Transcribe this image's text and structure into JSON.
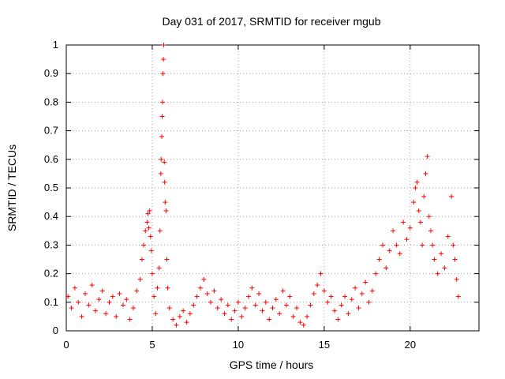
{
  "chart_data": {
    "type": "scatter",
    "title": "Day 031 of 2017, SRMTID for receiver mgub",
    "xlabel": "GPS time / hours",
    "ylabel": "SRMTID / TECUs",
    "xlim": [
      0,
      24
    ],
    "ylim": [
      0,
      1
    ],
    "xticks": [
      0,
      5,
      10,
      15,
      20
    ],
    "xtick_labels": [
      "0",
      "5",
      "10",
      "15",
      "20"
    ],
    "yticks": [
      0,
      0.1,
      0.2,
      0.3,
      0.4,
      0.5,
      0.6,
      0.7,
      0.8,
      0.9,
      1
    ],
    "ytick_labels": [
      "0",
      "0.1",
      "0.2",
      "0.3",
      "0.4",
      "0.5",
      "0.6",
      "0.7",
      "0.8",
      "0.9",
      "1"
    ],
    "grid": true,
    "marker": "+",
    "series": [
      {
        "name": "SRMTID",
        "color": "#ff0000",
        "points": [
          [
            0.1,
            0.12
          ],
          [
            0.3,
            0.08
          ],
          [
            0.5,
            0.15
          ],
          [
            0.7,
            0.1
          ],
          [
            0.9,
            0.05
          ],
          [
            1.1,
            0.13
          ],
          [
            1.3,
            0.09
          ],
          [
            1.5,
            0.16
          ],
          [
            1.7,
            0.07
          ],
          [
            1.9,
            0.11
          ],
          [
            2.1,
            0.14
          ],
          [
            2.3,
            0.06
          ],
          [
            2.5,
            0.1
          ],
          [
            2.7,
            0.12
          ],
          [
            2.9,
            0.05
          ],
          [
            3.1,
            0.13
          ],
          [
            3.3,
            0.09
          ],
          [
            3.5,
            0.11
          ],
          [
            3.7,
            0.04
          ],
          [
            3.9,
            0.08
          ],
          [
            4.1,
            0.14
          ],
          [
            4.3,
            0.18
          ],
          [
            4.4,
            0.25
          ],
          [
            4.5,
            0.3
          ],
          [
            4.6,
            0.35
          ],
          [
            4.7,
            0.38
          ],
          [
            4.75,
            0.41
          ],
          [
            4.8,
            0.36
          ],
          [
            4.85,
            0.42
          ],
          [
            4.9,
            0.33
          ],
          [
            4.95,
            0.28
          ],
          [
            5.0,
            0.2
          ],
          [
            5.1,
            0.12
          ],
          [
            5.2,
            0.06
          ],
          [
            5.3,
            0.15
          ],
          [
            5.4,
            0.22
          ],
          [
            5.45,
            0.35
          ],
          [
            5.5,
            0.55
          ],
          [
            5.52,
            0.6
          ],
          [
            5.55,
            0.68
          ],
          [
            5.58,
            0.75
          ],
          [
            5.6,
            0.8
          ],
          [
            5.62,
            0.9
          ],
          [
            5.65,
            0.95
          ],
          [
            5.67,
            1.0
          ],
          [
            5.7,
            0.59
          ],
          [
            5.72,
            0.52
          ],
          [
            5.75,
            0.45
          ],
          [
            5.8,
            0.42
          ],
          [
            5.85,
            0.25
          ],
          [
            5.9,
            0.15
          ],
          [
            6.0,
            0.08
          ],
          [
            6.2,
            0.04
          ],
          [
            6.4,
            0.02
          ],
          [
            6.6,
            0.05
          ],
          [
            6.8,
            0.07
          ],
          [
            7.0,
            0.03
          ],
          [
            7.2,
            0.06
          ],
          [
            7.4,
            0.09
          ],
          [
            7.6,
            0.12
          ],
          [
            7.8,
            0.15
          ],
          [
            8.0,
            0.18
          ],
          [
            8.2,
            0.13
          ],
          [
            8.4,
            0.1
          ],
          [
            8.6,
            0.14
          ],
          [
            8.8,
            0.08
          ],
          [
            9.0,
            0.11
          ],
          [
            9.2,
            0.06
          ],
          [
            9.4,
            0.09
          ],
          [
            9.6,
            0.04
          ],
          [
            9.8,
            0.07
          ],
          [
            10.0,
            0.1
          ],
          [
            10.2,
            0.05
          ],
          [
            10.4,
            0.08
          ],
          [
            10.6,
            0.12
          ],
          [
            10.8,
            0.15
          ],
          [
            11.0,
            0.09
          ],
          [
            11.2,
            0.13
          ],
          [
            11.4,
            0.07
          ],
          [
            11.6,
            0.1
          ],
          [
            11.8,
            0.04
          ],
          [
            12.0,
            0.08
          ],
          [
            12.2,
            0.11
          ],
          [
            12.4,
            0.06
          ],
          [
            12.6,
            0.14
          ],
          [
            12.8,
            0.09
          ],
          [
            13.0,
            0.12
          ],
          [
            13.2,
            0.05
          ],
          [
            13.4,
            0.08
          ],
          [
            13.6,
            0.03
          ],
          [
            13.8,
            0.02
          ],
          [
            14.0,
            0.05
          ],
          [
            14.2,
            0.09
          ],
          [
            14.4,
            0.13
          ],
          [
            14.6,
            0.16
          ],
          [
            14.8,
            0.2
          ],
          [
            15.0,
            0.14
          ],
          [
            15.2,
            0.1
          ],
          [
            15.4,
            0.12
          ],
          [
            15.6,
            0.07
          ],
          [
            15.8,
            0.04
          ],
          [
            16.0,
            0.09
          ],
          [
            16.2,
            0.12
          ],
          [
            16.4,
            0.06
          ],
          [
            16.6,
            0.11
          ],
          [
            16.8,
            0.15
          ],
          [
            17.0,
            0.08
          ],
          [
            17.2,
            0.13
          ],
          [
            17.4,
            0.17
          ],
          [
            17.6,
            0.1
          ],
          [
            17.8,
            0.14
          ],
          [
            18.0,
            0.2
          ],
          [
            18.2,
            0.25
          ],
          [
            18.4,
            0.3
          ],
          [
            18.6,
            0.22
          ],
          [
            18.8,
            0.28
          ],
          [
            19.0,
            0.35
          ],
          [
            19.2,
            0.3
          ],
          [
            19.4,
            0.27
          ],
          [
            19.6,
            0.38
          ],
          [
            19.8,
            0.32
          ],
          [
            20.0,
            0.36
          ],
          [
            20.2,
            0.45
          ],
          [
            20.3,
            0.5
          ],
          [
            20.4,
            0.52
          ],
          [
            20.5,
            0.42
          ],
          [
            20.6,
            0.38
          ],
          [
            20.7,
            0.3
          ],
          [
            20.8,
            0.47
          ],
          [
            20.9,
            0.55
          ],
          [
            21.0,
            0.61
          ],
          [
            21.1,
            0.4
          ],
          [
            21.2,
            0.35
          ],
          [
            21.3,
            0.3
          ],
          [
            21.4,
            0.25
          ],
          [
            21.6,
            0.2
          ],
          [
            21.8,
            0.27
          ],
          [
            22.0,
            0.22
          ],
          [
            22.2,
            0.33
          ],
          [
            22.4,
            0.47
          ],
          [
            22.5,
            0.3
          ],
          [
            22.6,
            0.25
          ],
          [
            22.7,
            0.18
          ],
          [
            22.8,
            0.12
          ]
        ]
      }
    ]
  }
}
